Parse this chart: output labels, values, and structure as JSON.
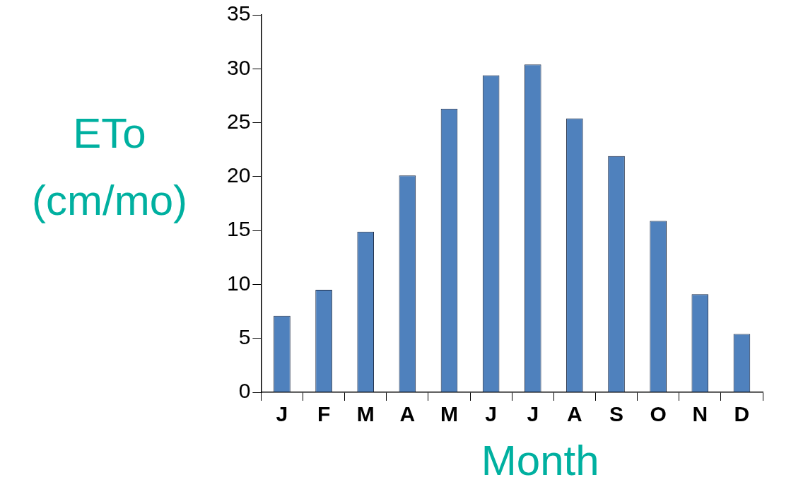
{
  "chart_data": {
    "type": "bar",
    "xlabel": "Month",
    "ylabel": "ETo (cm/mo)",
    "categories": [
      "J",
      "F",
      "M",
      "A",
      "M",
      "J",
      "J",
      "A",
      "S",
      "O",
      "N",
      "D"
    ],
    "values": [
      7.1,
      9.5,
      14.9,
      20.1,
      26.3,
      29.4,
      30.4,
      25.4,
      21.9,
      15.9,
      9.1,
      5.4
    ],
    "color": "#4f81bd",
    "ylim": [
      0,
      35
    ],
    "yticks": [
      0,
      5,
      10,
      15,
      20,
      25,
      30,
      35
    ],
    "grid": false,
    "legend": false
  }
}
